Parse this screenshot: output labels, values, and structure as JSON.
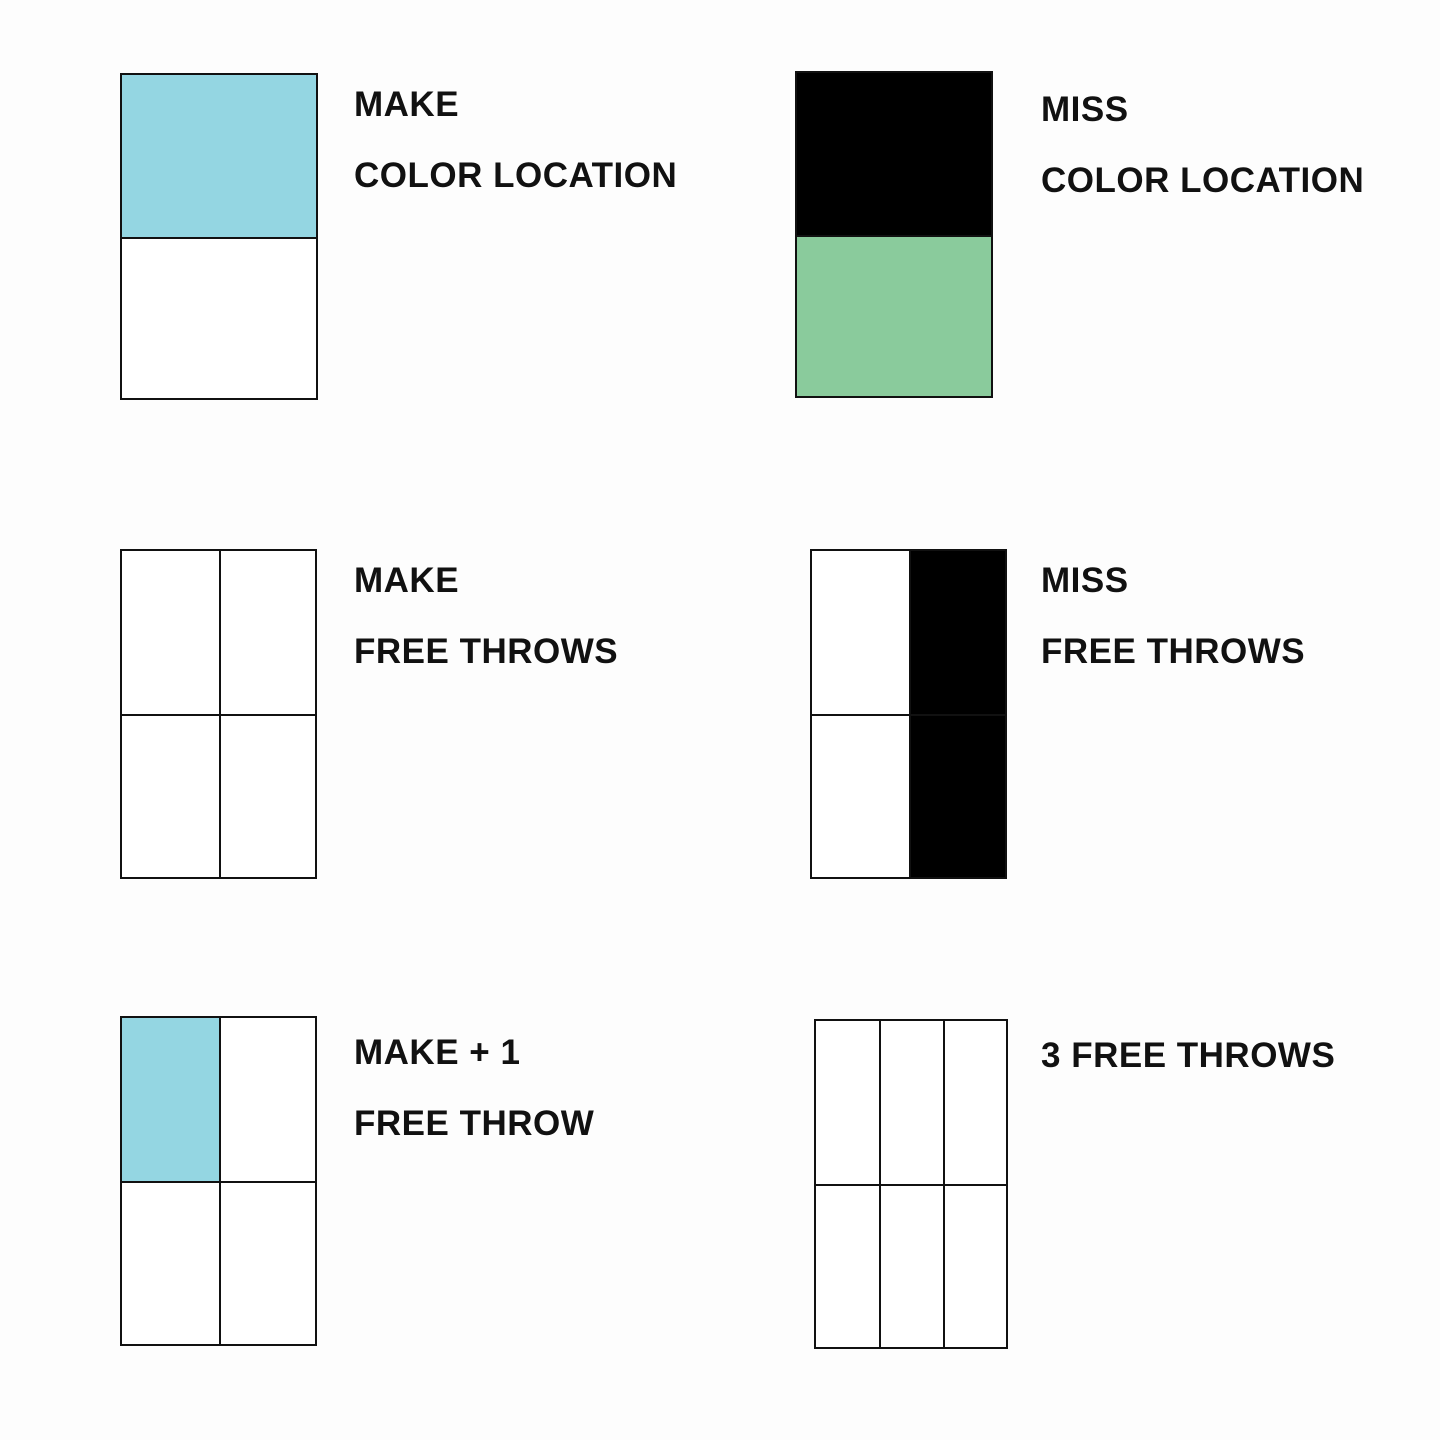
{
  "colors": {
    "blue": "#94d6e2",
    "green": "#8acb9c",
    "black": "#000000",
    "white": "#ffffff",
    "border": "#111111"
  },
  "legend": [
    {
      "id": "make-color-location",
      "lines": [
        "MAKE",
        "COLOR LOCATION"
      ],
      "grid": {
        "cols": 1,
        "rows": 2,
        "fills": [
          "blue",
          "white"
        ]
      }
    },
    {
      "id": "miss-color-location",
      "lines": [
        "MISS",
        "COLOR LOCATION"
      ],
      "grid": {
        "cols": 1,
        "rows": 2,
        "fills": [
          "black",
          "green"
        ]
      }
    },
    {
      "id": "make-free-throws",
      "lines": [
        "MAKE",
        "FREE THROWS"
      ],
      "grid": {
        "cols": 2,
        "rows": 2,
        "fills": [
          "white",
          "white",
          "white",
          "white"
        ]
      }
    },
    {
      "id": "miss-free-throws",
      "lines": [
        "MISS",
        "FREE THROWS"
      ],
      "grid": {
        "cols": 2,
        "rows": 2,
        "fills": [
          "white",
          "black",
          "white",
          "black"
        ]
      }
    },
    {
      "id": "make-plus-one-free-throw",
      "lines": [
        "MAKE + 1",
        "FREE THROW"
      ],
      "grid": {
        "cols": 2,
        "rows": 2,
        "fills": [
          "blue",
          "white",
          "white",
          "white"
        ]
      }
    },
    {
      "id": "three-free-throws",
      "lines": [
        "3 FREE THROWS"
      ],
      "grid": {
        "cols": 3,
        "rows": 2,
        "fills": [
          "white",
          "white",
          "white",
          "white",
          "white",
          "white"
        ]
      }
    }
  ]
}
